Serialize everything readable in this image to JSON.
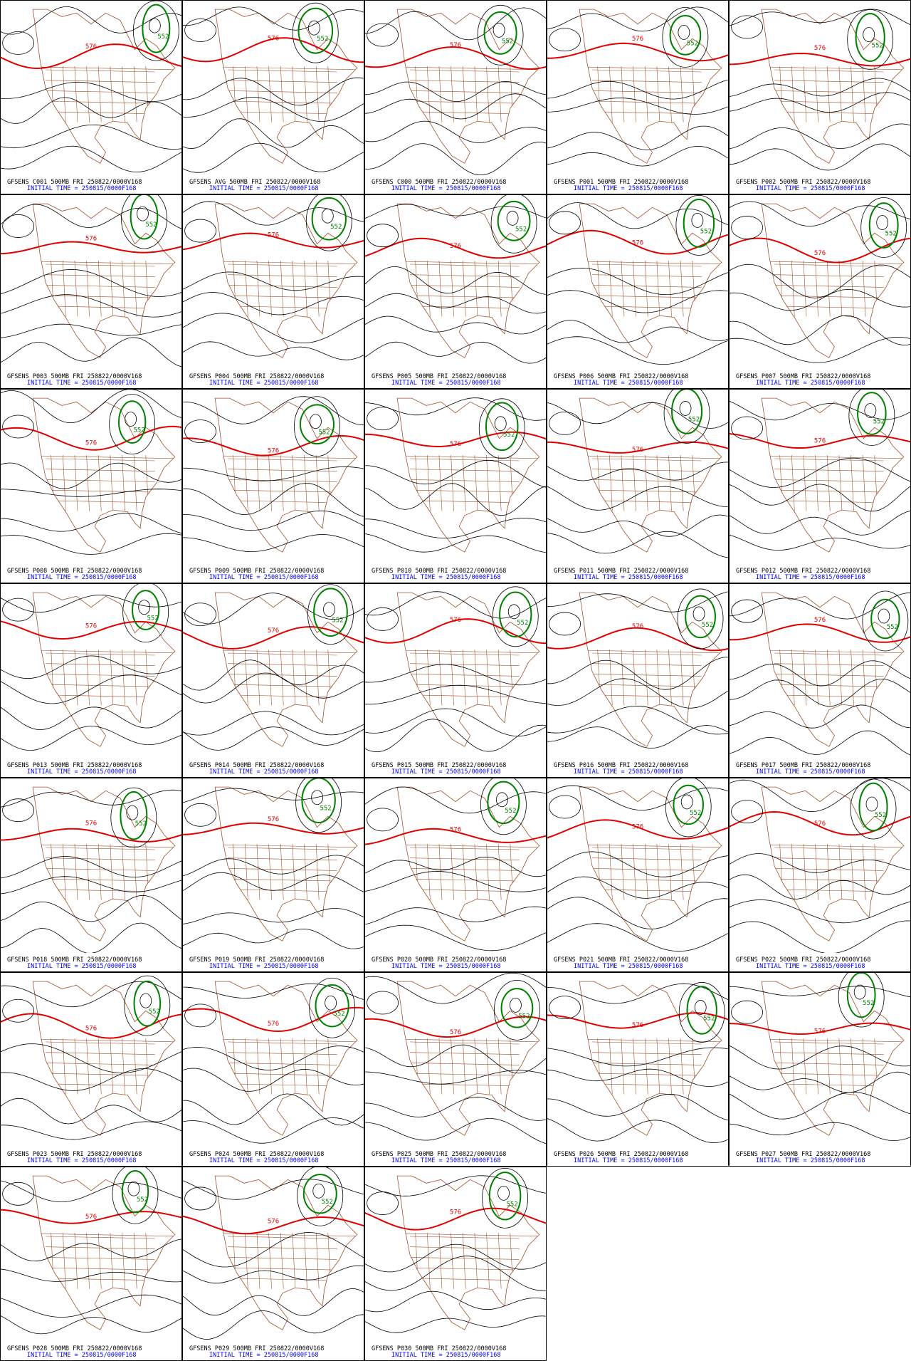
{
  "panels": [
    {
      "title": "GFSENS C001 500MB FRI 250822/0000V168",
      "init": "INITIAL TIME = 250815/0000F168",
      "labels": [
        "576",
        "552"
      ]
    },
    {
      "title": "GFSENS AVG 500MB FRI 250822/0000V168",
      "init": "INITIAL TIME = 250815/0000F168",
      "labels": [
        "576",
        "552"
      ]
    },
    {
      "title": "GFSENS C000 500MB FRI 250822/0000V168",
      "init": "INITIAL TIME = 250815/0000F168",
      "labels": [
        "576",
        "552"
      ]
    },
    {
      "title": "GFSENS P001 500MB FRI 250822/0000V168",
      "init": "INITIAL TIME = 250815/0000F168",
      "labels": [
        "576",
        "552"
      ]
    },
    {
      "title": "GFSENS P002 500MB FRI 250822/0000V168",
      "init": "INITIAL TIME = 250815/0000F168",
      "labels": [
        "576",
        "552"
      ]
    },
    {
      "title": "GFSENS P003 500MB FRI 250822/0000V168",
      "init": "INITIAL TIME = 250815/0000F168",
      "labels": [
        "576",
        "552"
      ]
    },
    {
      "title": "GFSENS P004 500MB FRI 250822/0000V168",
      "init": "INITIAL TIME = 250815/0000F168",
      "labels": [
        "576",
        "552"
      ]
    },
    {
      "title": "GFSENS P005 500MB FRI 250822/0000V168",
      "init": "INITIAL TIME = 250815/0000F168",
      "labels": [
        "576",
        "552"
      ]
    },
    {
      "title": "GFSENS P006 500MB FRI 250822/0000V168",
      "init": "INITIAL TIME = 250815/0000F168",
      "labels": [
        "576",
        "552"
      ]
    },
    {
      "title": "GFSENS P007 500MB FRI 250822/0000V168",
      "init": "INITIAL TIME = 250815/0000F168",
      "labels": [
        "576",
        "552"
      ]
    },
    {
      "title": "GFSENS P008 500MB FRI 250822/0000V168",
      "init": "INITIAL TIME = 250815/0000F168",
      "labels": [
        "576",
        "552"
      ]
    },
    {
      "title": "GFSENS P009 500MB FRI 250822/0000V168",
      "init": "INITIAL TIME = 250815/0000F168",
      "labels": [
        "576",
        "552"
      ]
    },
    {
      "title": "GFSENS P010 500MB FRI 250822/0000V168",
      "init": "INITIAL TIME = 250815/0000F168",
      "labels": [
        "576",
        "552"
      ]
    },
    {
      "title": "GFSENS P011 500MB FRI 250822/0000V168",
      "init": "INITIAL TIME = 250815/0000F168",
      "labels": [
        "576",
        "552"
      ]
    },
    {
      "title": "GFSENS P012 500MB FRI 250822/0000V168",
      "init": "INITIAL TIME = 250815/0000F168",
      "labels": [
        "576",
        "552"
      ]
    },
    {
      "title": "GFSENS P013 500MB FRI 250822/0000V168",
      "init": "INITIAL TIME = 250815/0000F168",
      "labels": [
        "576",
        "552"
      ]
    },
    {
      "title": "GFSENS P014 500MB FRI 250822/0000V168",
      "init": "INITIAL TIME = 250815/0000F168",
      "labels": [
        "576",
        "552"
      ]
    },
    {
      "title": "GFSENS P015 500MB FRI 250822/0000V168",
      "init": "INITIAL TIME = 250815/0000F168",
      "labels": [
        "576",
        "552"
      ]
    },
    {
      "title": "GFSENS P016 500MB FRI 250822/0000V168",
      "init": "INITIAL TIME = 250815/0000F168",
      "labels": [
        "576",
        "552"
      ]
    },
    {
      "title": "GFSENS P017 500MB FRI 250822/0000V168",
      "init": "INITIAL TIME = 250815/0000F168",
      "labels": [
        "576",
        "552"
      ]
    },
    {
      "title": "GFSENS P018 500MB FRI 250822/0000V168",
      "init": "INITIAL TIME = 250815/0000F168",
      "labels": [
        "576",
        "552"
      ]
    },
    {
      "title": "GFSENS P019 500MB FRI 250822/0000V168",
      "init": "INITIAL TIME = 250815/0000F168",
      "labels": [
        "576",
        "552"
      ]
    },
    {
      "title": "GFSENS P020 500MB FRI 250822/0000V168",
      "init": "INITIAL TIME = 250815/0000F168",
      "labels": [
        "576",
        "552"
      ]
    },
    {
      "title": "GFSENS P021 500MB FRI 250822/0000V168",
      "init": "INITIAL TIME = 250815/0000F168",
      "labels": [
        "576",
        "552"
      ]
    },
    {
      "title": "GFSENS P022 500MB FRI 250822/0000V168",
      "init": "INITIAL TIME = 250815/0000F168",
      "labels": [
        "576",
        "552"
      ]
    },
    {
      "title": "GFSENS P023 500MB FRI 250822/0000V168",
      "init": "INITIAL TIME = 250815/0000F168",
      "labels": [
        "576",
        "552"
      ]
    },
    {
      "title": "GFSENS P024 500MB FRI 250822/0000V168",
      "init": "INITIAL TIME = 250815/0000F168",
      "labels": [
        "576",
        "552"
      ]
    },
    {
      "title": "GFSENS P025 500MB FRI 250822/0000V168",
      "init": "INITIAL TIME = 250815/0000F168",
      "labels": [
        "576",
        "552"
      ]
    },
    {
      "title": "GFSENS P026 500MB FRI 250822/0000V168",
      "init": "INITIAL TIME = 250815/0000F168",
      "labels": [
        "576",
        "552"
      ]
    },
    {
      "title": "GFSENS P027 500MB FRI 250822/0000V168",
      "init": "INITIAL TIME = 250815/0000F168",
      "labels": [
        "576",
        "552"
      ]
    },
    {
      "title": "GFSENS P028 500MB FRI 250822/0000V168",
      "init": "INITIAL TIME = 250815/0000F168",
      "labels": [
        "576",
        "552"
      ]
    },
    {
      "title": "GFSENS P029 500MB FRI 250822/0000V168",
      "init": "INITIAL TIME = 250815/0000F168",
      "labels": [
        "576",
        "552"
      ]
    },
    {
      "title": "GFSENS P030 500MB FRI 250822/0000V168",
      "init": "INITIAL TIME = 250815/0000F168",
      "labels": [
        "576",
        "552"
      ]
    }
  ]
}
